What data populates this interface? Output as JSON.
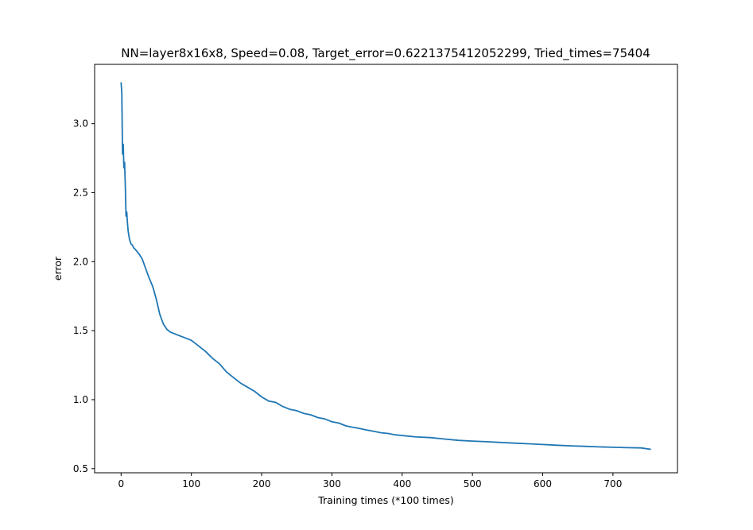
{
  "chart_data": {
    "type": "line",
    "title": "NN=layer8x16x8, Speed=0.08, Target_error=0.6221375412052299, Tried_times=75404",
    "xlabel": "Training times (*100 times)",
    "ylabel": "error",
    "xlim": [
      -37.7,
      791.8
    ],
    "ylim": [
      0.47,
      3.43
    ],
    "xticks": [
      0,
      100,
      200,
      300,
      400,
      500,
      600,
      700
    ],
    "yticks": [
      0.5,
      1.0,
      1.5,
      2.0,
      2.5,
      3.0
    ],
    "xtick_labels": [
      "0",
      "100",
      "200",
      "300",
      "400",
      "500",
      "600",
      "700"
    ],
    "ytick_labels": [
      "0.5",
      "1.0",
      "1.5",
      "2.0",
      "2.5",
      "3.0"
    ],
    "grid": false,
    "legend": "none",
    "series": [
      {
        "color": "#1f77b4",
        "x": [
          0,
          1,
          2,
          3,
          4,
          5,
          6,
          7,
          8,
          9,
          10,
          12,
          14,
          16,
          18,
          20,
          25,
          30,
          35,
          40,
          45,
          50,
          55,
          60,
          65,
          70,
          80,
          90,
          100,
          110,
          120,
          130,
          140,
          150,
          160,
          170,
          180,
          190,
          200,
          210,
          220,
          230,
          240,
          250,
          260,
          270,
          280,
          290,
          300,
          310,
          320,
          330,
          340,
          350,
          360,
          370,
          380,
          390,
          400,
          420,
          440,
          460,
          480,
          500,
          520,
          540,
          560,
          580,
          600,
          620,
          640,
          660,
          680,
          700,
          720,
          740,
          754
        ],
        "y": [
          3.3,
          3.22,
          2.78,
          2.85,
          2.68,
          2.72,
          2.55,
          2.33,
          2.36,
          2.28,
          2.22,
          2.16,
          2.13,
          2.12,
          2.1,
          2.09,
          2.06,
          2.02,
          1.95,
          1.88,
          1.82,
          1.73,
          1.62,
          1.55,
          1.51,
          1.49,
          1.47,
          1.45,
          1.43,
          1.39,
          1.35,
          1.3,
          1.26,
          1.2,
          1.16,
          1.12,
          1.09,
          1.06,
          1.02,
          0.99,
          0.98,
          0.95,
          0.93,
          0.92,
          0.9,
          0.89,
          0.87,
          0.86,
          0.84,
          0.83,
          0.81,
          0.8,
          0.79,
          0.78,
          0.77,
          0.76,
          0.755,
          0.745,
          0.74,
          0.73,
          0.725,
          0.715,
          0.705,
          0.7,
          0.695,
          0.69,
          0.685,
          0.68,
          0.675,
          0.67,
          0.665,
          0.662,
          0.658,
          0.655,
          0.652,
          0.65,
          0.64
        ]
      }
    ]
  }
}
